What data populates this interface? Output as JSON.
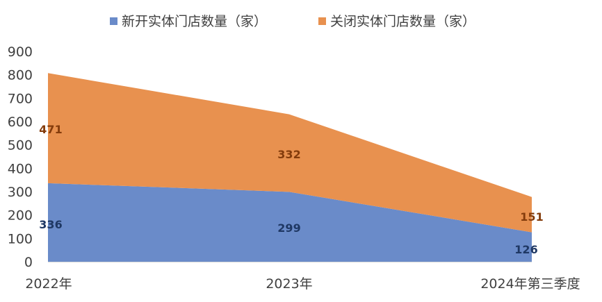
{
  "chart_data": {
    "type": "area",
    "stacked": true,
    "categories": [
      "2022年",
      "2023年",
      "2024年第三季度"
    ],
    "series": [
      {
        "name": "新开实体门店数量（家）",
        "values": [
          336,
          299,
          126
        ],
        "color": "#6a8bc9",
        "label_color": "#1f3864"
      },
      {
        "name": "关闭实体门店数量（家）",
        "values": [
          471,
          332,
          151
        ],
        "color": "#e8914f",
        "label_color": "#843c0c"
      }
    ],
    "ylim": [
      0,
      900
    ],
    "yticks": [
      0,
      100,
      200,
      300,
      400,
      500,
      600,
      700,
      800,
      900
    ],
    "grid": false,
    "legend_position": "top",
    "title": "",
    "xlabel": "",
    "ylabel": ""
  }
}
